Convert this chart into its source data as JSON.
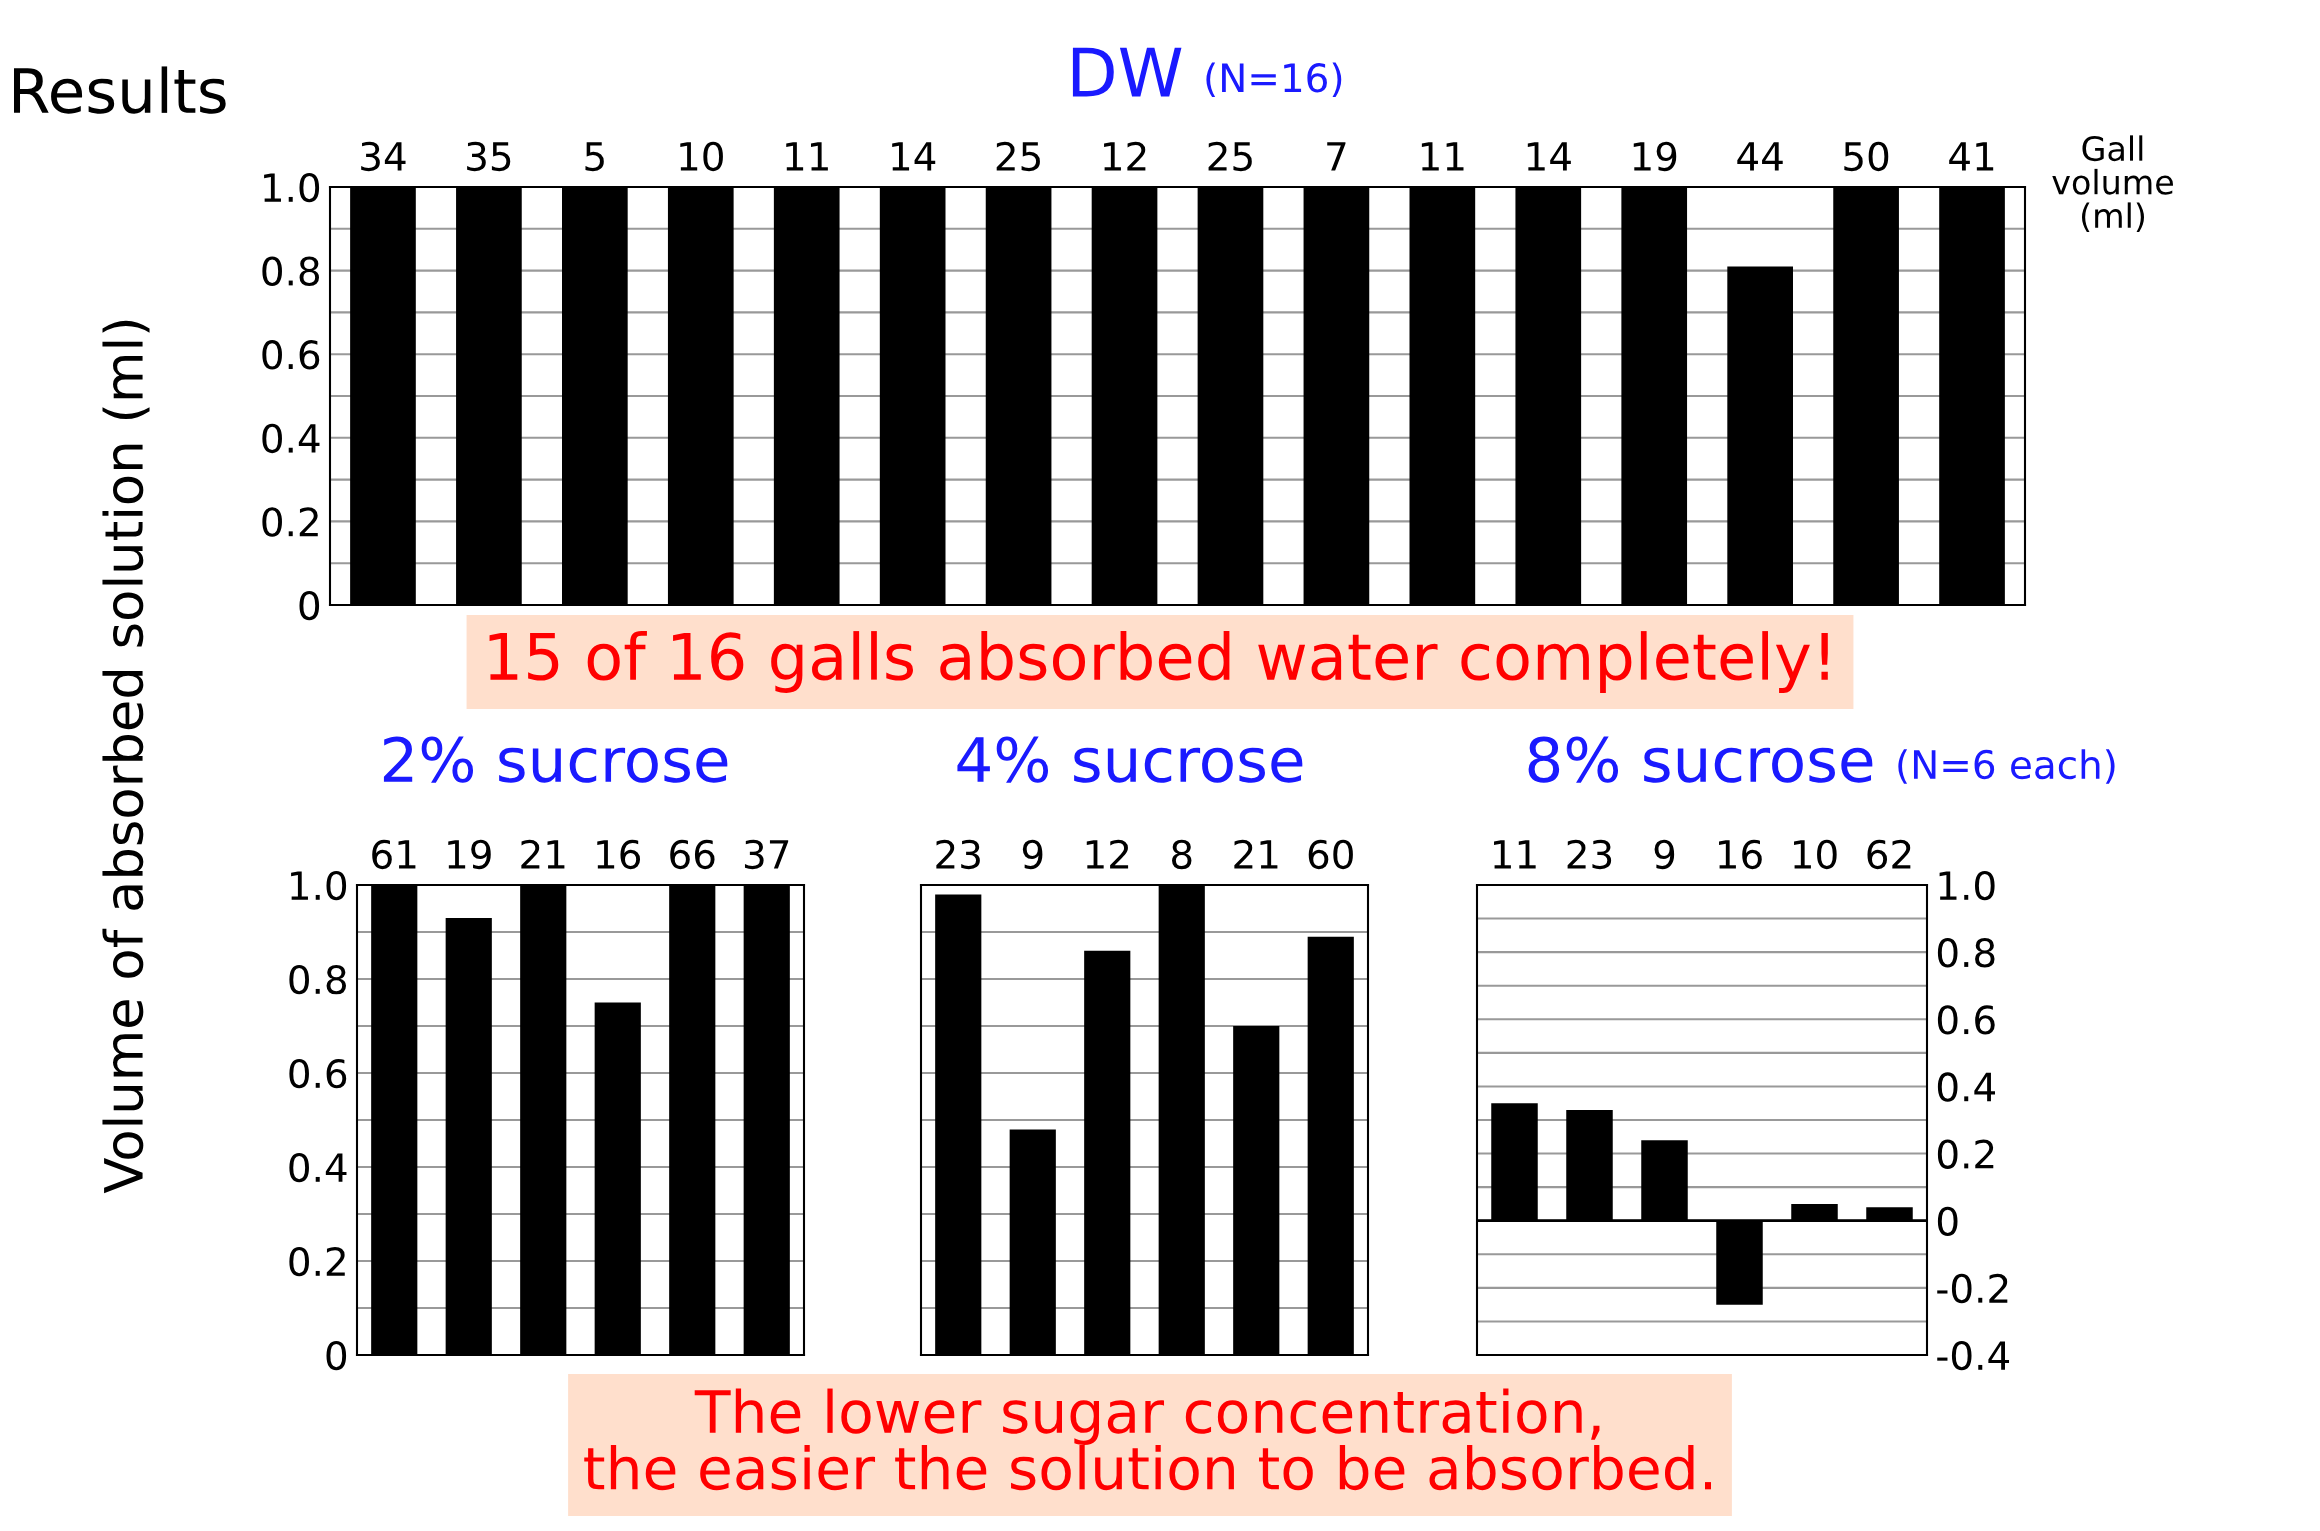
{
  "chart_data": [
    {
      "type": "bar",
      "title": "DW",
      "subtitle": "(N=16)",
      "xlabel": "Gall\nvolume\n(ml)",
      "ylabel": "Volume of absorbed solution (ml)",
      "annotations": [
        "Results",
        "15 of 16 galls absorbed water completely!",
        "The lower sugar concentration,\nthe easier the solution to be absorbed."
      ],
      "categories": [
        "34",
        "35",
        "5",
        "10",
        "11",
        "14",
        "25",
        "12",
        "25",
        "7",
        "11",
        "14",
        "19",
        "44",
        "50",
        "41"
      ],
      "series": [
        {
          "color": "#000000",
          "values": [
            1.0,
            1.0,
            1.0,
            1.0,
            1.0,
            1.0,
            1.0,
            1.0,
            1.0,
            1.0,
            1.0,
            1.0,
            1.0,
            0.81,
            1.0,
            1.0
          ]
        }
      ],
      "ylim": [
        0,
        1
      ],
      "yticks": [
        0,
        {
          "value": 0.1,
          "label": null
        },
        0.2,
        {
          "value": 0.3,
          "label": null
        },
        0.4,
        {
          "value": 0.5,
          "label": null
        },
        0.6,
        {
          "value": 0.7,
          "label": null
        },
        0.8,
        {
          "value": 0.9,
          "label": null
        },
        {
          "value": 1,
          "label": "1.0"
        }
      ],
      "grid": "y"
    },
    {
      "type": "bar",
      "title": "2% sucrose",
      "categories": [
        "61",
        "19",
        "21",
        "16",
        "66",
        "37"
      ],
      "series": [
        {
          "color": "#000000",
          "values": [
            1.0,
            0.93,
            1.0,
            0.75,
            1.0,
            1.0
          ]
        }
      ],
      "ylim": [
        0,
        1
      ],
      "yticks": [
        0,
        {
          "value": 0.1,
          "label": null
        },
        0.2,
        {
          "value": 0.3,
          "label": null
        },
        0.4,
        {
          "value": 0.5,
          "label": null
        },
        0.6,
        {
          "value": 0.7,
          "label": null
        },
        0.8,
        {
          "value": 0.9,
          "label": null
        },
        {
          "value": 1,
          "label": "1.0"
        }
      ],
      "grid": "y"
    },
    {
      "type": "bar",
      "title": "4% sucrose",
      "categories": [
        "23",
        "9",
        "12",
        "8",
        "21",
        "60"
      ],
      "series": [
        {
          "color": "#000000",
          "values": [
            0.98,
            0.48,
            0.86,
            1.0,
            0.7,
            0.89
          ]
        }
      ],
      "ylim": [
        0,
        1
      ],
      "yticks": [
        {
          "value": 0,
          "label": null
        },
        {
          "value": 0.1,
          "label": null
        },
        {
          "value": 0.2,
          "label": null
        },
        {
          "value": 0.3,
          "label": null
        },
        {
          "value": 0.4,
          "label": null
        },
        {
          "value": 0.5,
          "label": null
        },
        {
          "value": 0.6,
          "label": null
        },
        {
          "value": 0.7,
          "label": null
        },
        {
          "value": 0.8,
          "label": null
        },
        {
          "value": 0.9,
          "label": null
        },
        {
          "value": 1,
          "label": null
        }
      ],
      "grid": "y",
      "tick_labels": "x"
    },
    {
      "type": "bar",
      "title": "8% sucrose",
      "subtitle": "(N=6 each)",
      "categories": [
        "11",
        "23",
        "9",
        "16",
        "10",
        "62"
      ],
      "series": [
        {
          "color": "#000000",
          "axis": "y2",
          "values": [
            0.35,
            0.33,
            0.24,
            -0.25,
            0.05,
            0.04
          ]
        }
      ],
      "y2lim": [
        -0.4,
        1
      ],
      "y2ticks": [
        -0.4,
        {
          "value": -0.3,
          "label": null
        },
        -0.2,
        {
          "value": -0.1,
          "label": null
        },
        0,
        {
          "value": 0.1,
          "label": null
        },
        0.2,
        {
          "value": 0.3,
          "label": null
        },
        0.4,
        {
          "value": 0.5,
          "label": null
        },
        0.6,
        {
          "value": 0.7,
          "label": null
        },
        0.8,
        {
          "value": 0.9,
          "label": null
        },
        {
          "value": 1,
          "label": "1.0"
        }
      ],
      "grid": "y"
    }
  ]
}
